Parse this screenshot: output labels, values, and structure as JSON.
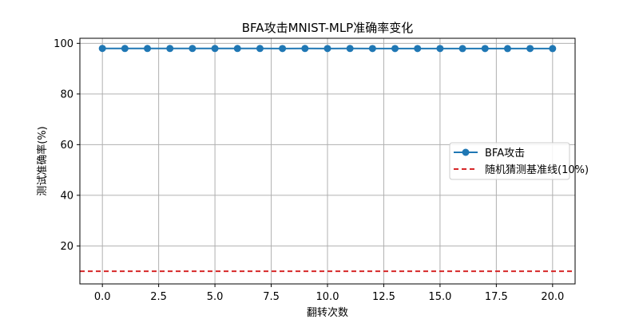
{
  "chart_data": {
    "type": "line",
    "title": "BFA攻击MNIST-MLP准确率变化",
    "xlabel": "翻转次数",
    "ylabel": "测试准确率(%)",
    "xlim": [
      -1,
      21
    ],
    "ylim": [
      5,
      102
    ],
    "xticks": [
      "0.0",
      "2.5",
      "5.0",
      "7.5",
      "10.0",
      "12.5",
      "15.0",
      "17.5",
      "20.0"
    ],
    "xtick_values": [
      0,
      2.5,
      5,
      7.5,
      10,
      12.5,
      15,
      17.5,
      20
    ],
    "yticks": [
      "20",
      "40",
      "60",
      "80",
      "100"
    ],
    "ytick_values": [
      20,
      40,
      60,
      80,
      100
    ],
    "grid": true,
    "legend_position": "center-right",
    "series": [
      {
        "name": "BFA攻击",
        "color": "#1f77b4",
        "marker": "circle",
        "line_style": "solid",
        "x": [
          0,
          1,
          2,
          3,
          4,
          5,
          6,
          7,
          8,
          9,
          10,
          11,
          12,
          13,
          14,
          15,
          16,
          17,
          18,
          19,
          20
        ],
        "values": [
          98.0,
          97.98,
          97.97,
          97.98,
          97.97,
          97.98,
          97.97,
          97.98,
          97.96,
          97.97,
          97.96,
          97.97,
          97.96,
          97.95,
          97.96,
          97.95,
          97.94,
          97.95,
          97.94,
          97.95,
          97.94
        ]
      },
      {
        "name": "随机猜测基准线(10%)",
        "color": "#d62728",
        "line_style": "dashed",
        "y": 10
      }
    ]
  }
}
